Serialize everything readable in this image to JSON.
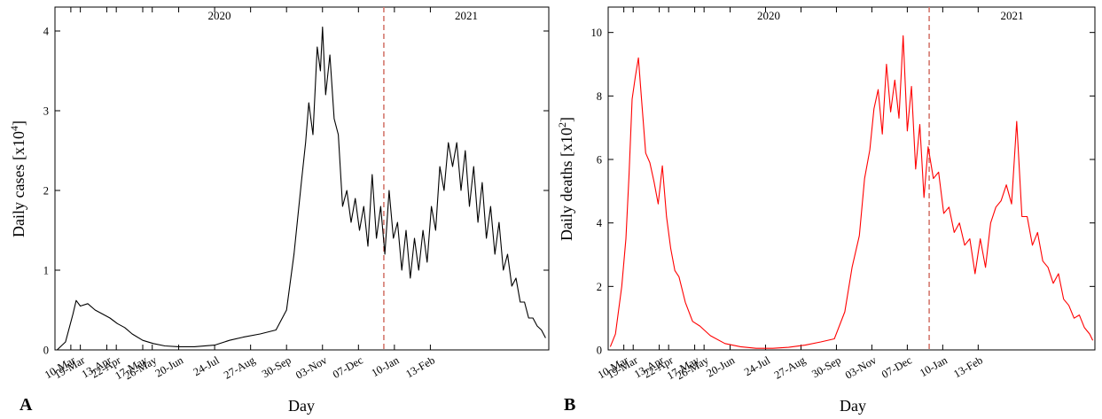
{
  "panels": [
    {
      "letter": "A",
      "ylabel": "Daily cases [x10",
      "ylabel_exp": "4",
      "xlabel": "Day"
    },
    {
      "letter": "B",
      "ylabel": "Daily deaths [x10",
      "ylabel_exp": "2",
      "xlabel": "Day"
    }
  ],
  "chart_data": [
    {
      "type": "line",
      "title": "",
      "xlabel": "Day",
      "ylabel": "Daily cases [x10^4]",
      "year_labels": [
        "2020",
        "2021"
      ],
      "year_divider": "2020-12-31",
      "xlim": [
        "2020-02-24",
        "2021-06-05"
      ],
      "ylim": [
        0,
        4.3
      ],
      "yticks": [
        0,
        1,
        2,
        3,
        4
      ],
      "xticks": [
        "10-Mar",
        "13-Apr",
        "17-May",
        "20-Jun",
        "24-Jul",
        "27-Aug",
        "30-Sep",
        "03-Nov",
        "07-Dec",
        "10-Jan",
        "13-Feb",
        "19-Mar",
        "22-Apr",
        "26-May"
      ],
      "color": "#000000",
      "series": [
        {
          "x": [
            "2020-02-26",
            "2020-03-05",
            "2020-03-12",
            "2020-03-15",
            "2020-03-19",
            "2020-03-26",
            "2020-04-02",
            "2020-04-09",
            "2020-04-16",
            "2020-04-23",
            "2020-04-30",
            "2020-05-07",
            "2020-05-17",
            "2020-05-27",
            "2020-06-07",
            "2020-06-20",
            "2020-07-05",
            "2020-07-24",
            "2020-08-07",
            "2020-08-20",
            "2020-09-05",
            "2020-09-20",
            "2020-09-30",
            "2020-10-07",
            "2020-10-14",
            "2020-10-18",
            "2020-10-21",
            "2020-10-25",
            "2020-10-29",
            "2020-11-01",
            "2020-11-03",
            "2020-11-06",
            "2020-11-10",
            "2020-11-14",
            "2020-11-18",
            "2020-11-22",
            "2020-11-26",
            "2020-11-30",
            "2020-12-04",
            "2020-12-08",
            "2020-12-12",
            "2020-12-16",
            "2020-12-20",
            "2020-12-24",
            "2020-12-28",
            "2021-01-01",
            "2021-01-05",
            "2021-01-09",
            "2021-01-13",
            "2021-01-17",
            "2021-01-21",
            "2021-01-25",
            "2021-01-29",
            "2021-02-02",
            "2021-02-06",
            "2021-02-10",
            "2021-02-14",
            "2021-02-18",
            "2021-02-22",
            "2021-02-26",
            "2021-03-02",
            "2021-03-06",
            "2021-03-10",
            "2021-03-14",
            "2021-03-18",
            "2021-03-22",
            "2021-03-26",
            "2021-03-30",
            "2021-04-03",
            "2021-04-07",
            "2021-04-11",
            "2021-04-15",
            "2021-04-19",
            "2021-04-23",
            "2021-04-27",
            "2021-05-01",
            "2021-05-05",
            "2021-05-09",
            "2021-05-13",
            "2021-05-17",
            "2021-05-21",
            "2021-05-25",
            "2021-05-29",
            "2021-06-02"
          ],
          "values": [
            0.0,
            0.1,
            0.45,
            0.62,
            0.55,
            0.58,
            0.5,
            0.45,
            0.4,
            0.33,
            0.28,
            0.2,
            0.12,
            0.08,
            0.05,
            0.04,
            0.04,
            0.06,
            0.12,
            0.16,
            0.2,
            0.25,
            0.5,
            1.2,
            2.1,
            2.6,
            3.1,
            2.7,
            3.8,
            3.5,
            4.05,
            3.2,
            3.7,
            2.9,
            2.7,
            1.8,
            2.0,
            1.6,
            1.9,
            1.5,
            1.8,
            1.3,
            2.2,
            1.4,
            1.8,
            1.2,
            2.0,
            1.4,
            1.6,
            1.0,
            1.5,
            0.9,
            1.4,
            1.0,
            1.5,
            1.1,
            1.8,
            1.5,
            2.3,
            2.0,
            2.6,
            2.3,
            2.6,
            2.0,
            2.5,
            1.8,
            2.3,
            1.6,
            2.1,
            1.4,
            1.8,
            1.2,
            1.6,
            1.0,
            1.2,
            0.8,
            0.9,
            0.6,
            0.6,
            0.4,
            0.4,
            0.3,
            0.25,
            0.15
          ]
        }
      ]
    },
    {
      "type": "line",
      "title": "",
      "xlabel": "Day",
      "ylabel": "Daily deaths [x10^2]",
      "year_labels": [
        "2020",
        "2021"
      ],
      "year_divider": "2020-12-28",
      "xlim": [
        "2020-02-24",
        "2021-06-05"
      ],
      "ylim": [
        0,
        10.8
      ],
      "yticks": [
        0,
        2,
        4,
        6,
        8,
        10
      ],
      "xticks": [
        "10-Mar",
        "13-Apr",
        "17-May",
        "20-Jun",
        "24-Jul",
        "27-Aug",
        "30-Sep",
        "03-Nov",
        "07-Dec",
        "10-Jan",
        "13-Feb",
        "19-Mar",
        "22-Apr",
        "26-May"
      ],
      "color": "#ff0000",
      "series": [
        {
          "x": [
            "2020-02-26",
            "2020-03-02",
            "2020-03-08",
            "2020-03-12",
            "2020-03-15",
            "2020-03-18",
            "2020-03-21",
            "2020-03-24",
            "2020-03-27",
            "2020-03-31",
            "2020-04-04",
            "2020-04-08",
            "2020-04-12",
            "2020-04-16",
            "2020-04-20",
            "2020-04-24",
            "2020-04-28",
            "2020-05-02",
            "2020-05-08",
            "2020-05-15",
            "2020-05-22",
            "2020-06-01",
            "2020-06-15",
            "2020-06-30",
            "2020-07-15",
            "2020-07-31",
            "2020-08-15",
            "2020-08-31",
            "2020-09-15",
            "2020-09-28",
            "2020-10-08",
            "2020-10-15",
            "2020-10-22",
            "2020-10-27",
            "2020-11-01",
            "2020-11-05",
            "2020-11-09",
            "2020-11-13",
            "2020-11-17",
            "2020-11-21",
            "2020-11-25",
            "2020-11-29",
            "2020-12-03",
            "2020-12-07",
            "2020-12-11",
            "2020-12-15",
            "2020-12-19",
            "2020-12-23",
            "2020-12-27",
            "2021-01-01",
            "2021-01-06",
            "2021-01-11",
            "2021-01-16",
            "2021-01-21",
            "2021-01-26",
            "2021-01-31",
            "2021-02-05",
            "2021-02-10",
            "2021-02-15",
            "2021-02-20",
            "2021-02-25",
            "2021-03-02",
            "2021-03-07",
            "2021-03-12",
            "2021-03-17",
            "2021-03-22",
            "2021-03-27",
            "2021-04-01",
            "2021-04-06",
            "2021-04-11",
            "2021-04-16",
            "2021-04-21",
            "2021-04-26",
            "2021-05-01",
            "2021-05-06",
            "2021-05-11",
            "2021-05-16",
            "2021-05-21",
            "2021-05-26",
            "2021-05-31",
            "2021-06-03"
          ],
          "values": [
            0.1,
            0.5,
            2.0,
            3.5,
            5.5,
            7.9,
            8.6,
            9.2,
            7.9,
            6.2,
            5.9,
            5.3,
            4.6,
            5.8,
            4.2,
            3.2,
            2.5,
            2.3,
            1.5,
            0.9,
            0.75,
            0.45,
            0.2,
            0.1,
            0.05,
            0.05,
            0.08,
            0.15,
            0.25,
            0.35,
            1.2,
            2.6,
            3.6,
            5.4,
            6.3,
            7.6,
            8.2,
            6.8,
            9.0,
            7.5,
            8.5,
            7.3,
            9.9,
            6.9,
            8.3,
            5.7,
            7.1,
            4.8,
            6.4,
            5.4,
            5.6,
            4.3,
            4.5,
            3.7,
            4.0,
            3.3,
            3.5,
            2.4,
            3.5,
            2.6,
            4.0,
            4.5,
            4.7,
            5.2,
            4.6,
            7.2,
            4.2,
            4.2,
            3.3,
            3.7,
            2.8,
            2.6,
            2.1,
            2.4,
            1.6,
            1.4,
            1.0,
            1.1,
            0.7,
            0.5,
            0.3
          ]
        }
      ]
    }
  ]
}
